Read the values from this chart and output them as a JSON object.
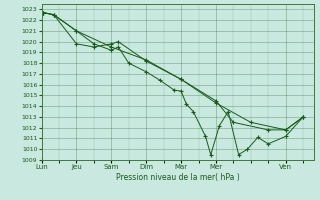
{
  "title": "Pression niveau de la mer( hPa )",
  "bg_color": "#c8e8e0",
  "grid_color": "#3a7a3a",
  "line_color": "#1a5a1a",
  "ylim": [
    1009,
    1023.5
  ],
  "yticks": [
    1009,
    1010,
    1011,
    1012,
    1013,
    1014,
    1015,
    1016,
    1017,
    1018,
    1019,
    1020,
    1021,
    1022,
    1023
  ],
  "xtick_labels": [
    "Lun",
    "Jeu",
    "Sam",
    "Dim",
    "Mar",
    "Mer",
    "Ven"
  ],
  "xtick_positions": [
    0,
    1,
    2,
    3,
    4,
    5,
    7
  ],
  "xlim": [
    0,
    7.8
  ],
  "series": [
    {
      "x": [
        0.05,
        0.35,
        1.0,
        1.5,
        2.0,
        2.2,
        2.5,
        3.0,
        3.4,
        3.8,
        4.0,
        4.15,
        4.35,
        4.7,
        4.85,
        5.1,
        5.35,
        5.65,
        5.9,
        6.2,
        6.5,
        7.0,
        7.5
      ],
      "y": [
        1022.7,
        1022.5,
        1021.0,
        1019.8,
        1019.2,
        1019.5,
        1018.0,
        1017.2,
        1016.4,
        1015.5,
        1015.4,
        1014.2,
        1013.5,
        1011.2,
        1009.5,
        1012.2,
        1013.5,
        1009.5,
        1010.0,
        1011.1,
        1010.5,
        1011.2,
        1013.0
      ]
    },
    {
      "x": [
        0.05,
        0.35,
        1.0,
        1.5,
        2.0,
        2.2,
        3.0,
        4.0,
        5.0,
        5.5,
        6.5,
        7.0,
        7.5
      ],
      "y": [
        1022.7,
        1022.5,
        1019.8,
        1019.5,
        1019.8,
        1020.0,
        1018.2,
        1016.5,
        1014.5,
        1012.5,
        1011.8,
        1011.8,
        1013.0
      ]
    },
    {
      "x": [
        0.05,
        0.35,
        1.0,
        2.0,
        3.0,
        4.0,
        5.0,
        6.0,
        7.0,
        7.5
      ],
      "y": [
        1022.7,
        1022.5,
        1021.0,
        1019.5,
        1018.3,
        1016.5,
        1014.3,
        1012.5,
        1011.8,
        1013.0
      ]
    }
  ]
}
